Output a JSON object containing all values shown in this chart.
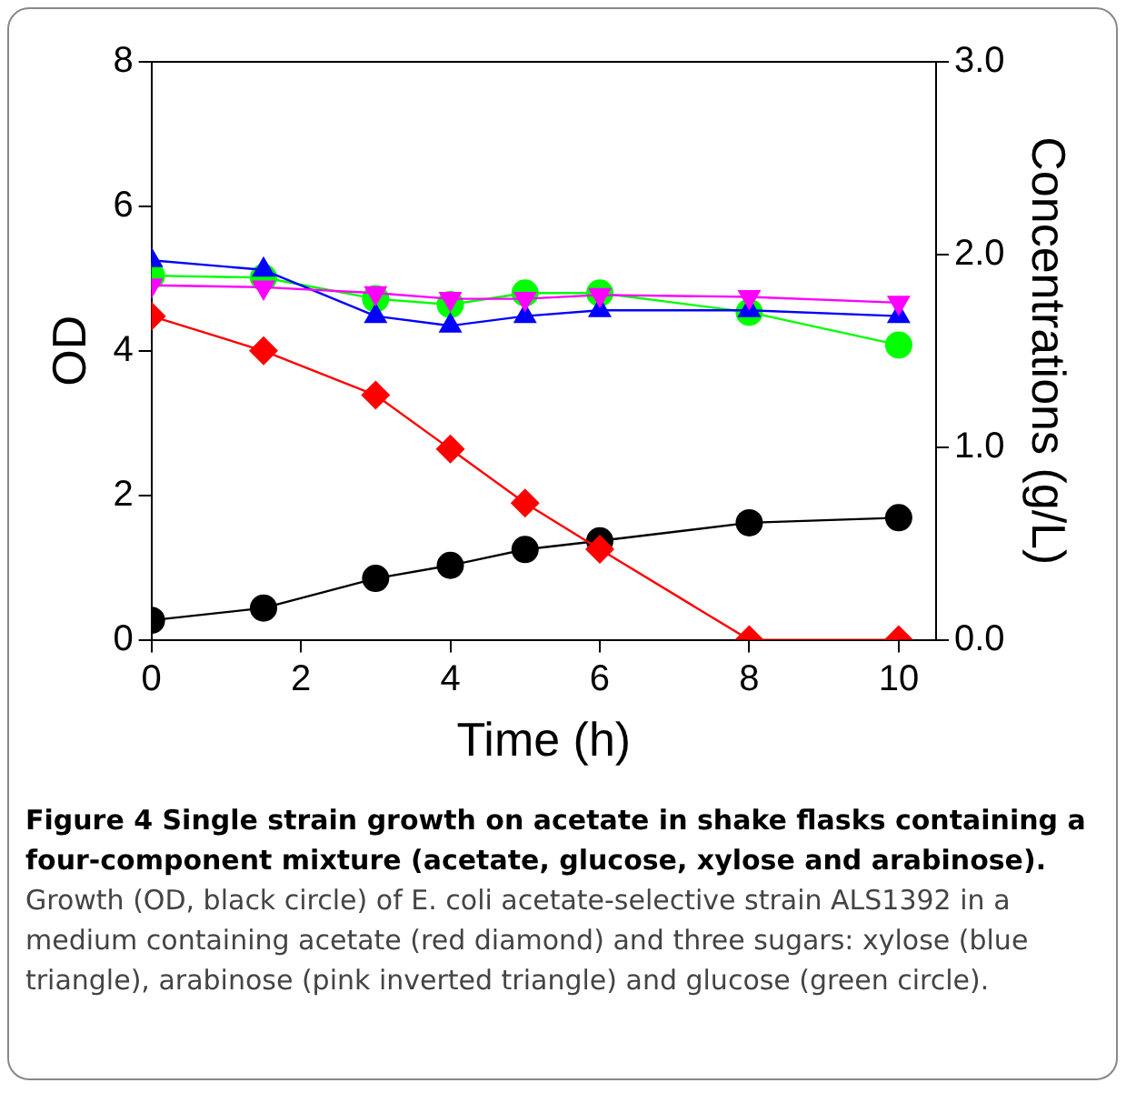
{
  "chart_data": {
    "type": "line",
    "xlabel": "Time (h)",
    "ylabel": "OD",
    "y2label": "Concentrations (g/L)",
    "x": [
      0,
      1.5,
      3,
      4,
      5,
      6,
      8,
      10
    ],
    "xlim": [
      0,
      10.5
    ],
    "xticks": [
      0,
      2,
      4,
      6,
      8,
      10
    ],
    "ylim": [
      0,
      8
    ],
    "yticks": [
      0,
      2,
      4,
      6,
      8
    ],
    "y2lim": [
      0,
      3
    ],
    "y2ticks": [
      {
        "value": 0,
        "label": "0.0"
      },
      {
        "value": 1,
        "label": "1.0"
      },
      {
        "value": 2,
        "label": "2.0"
      },
      {
        "value": 3,
        "label": "3.0"
      }
    ],
    "grid": false,
    "legend": false,
    "line_style": "solid",
    "series": [
      {
        "color": "#ff00ff",
        "marker": "triangle-down",
        "axis": "y2",
        "values": [
          1.84,
          1.83,
          1.8,
          1.77,
          1.77,
          1.79,
          1.78,
          1.75
        ]
      },
      {
        "color": "#0000ff",
        "marker": "triangle",
        "axis": "y2",
        "values": [
          1.97,
          1.92,
          1.68,
          1.63,
          1.68,
          1.71,
          1.71,
          1.68
        ]
      },
      {
        "color": "#00ff00",
        "marker": "circle",
        "axis": "y2",
        "values": [
          1.89,
          1.88,
          1.77,
          1.74,
          1.8,
          1.8,
          1.7,
          1.53
        ]
      },
      {
        "color": "#ff0000",
        "marker": "diamond",
        "axis": "y2",
        "values": [
          1.68,
          1.5,
          1.27,
          0.99,
          0.71,
          0.47,
          0,
          0
        ]
      },
      {
        "color": "#000000",
        "marker": "circle",
        "axis": "y",
        "values": [
          0.27,
          0.44,
          0.85,
          1.03,
          1.25,
          1.37,
          1.62,
          1.69
        ]
      }
    ],
    "annotations": [
      "Figure 4 Single strain growth on acetate in shake flasks containing a four-component mixture (acetate, glucose, xylose and arabinose).",
      "Growth (OD, black circle) of E. coli acetate-selective strain ALS1392 in a medium containing acetate (red diamond) and three sugars: xylose (blue triangle), arabinose (pink inverted triangle) and glucose (green circle)."
    ]
  }
}
